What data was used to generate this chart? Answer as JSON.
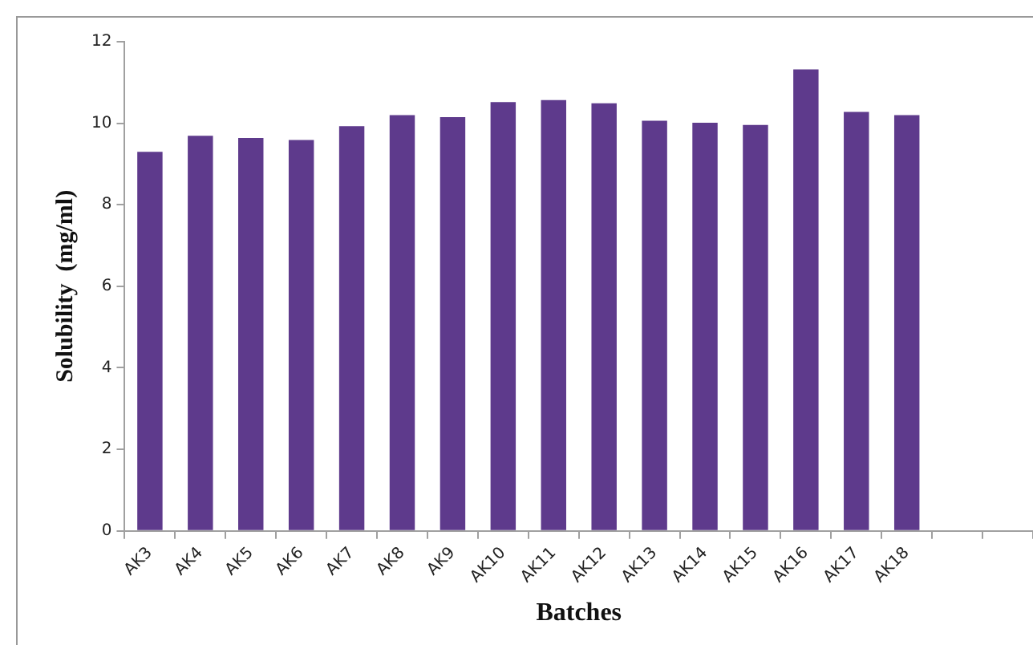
{
  "chart_data": {
    "type": "bar",
    "xlabel": "Batches",
    "ylabel": "Solubility  (mg/ml)",
    "categories": [
      "AK3",
      "AK4",
      "AK5",
      "AK6",
      "AK7",
      "AK8",
      "AK9",
      "AK10",
      "AK11",
      "AK12",
      "AK13",
      "AK14",
      "AK15",
      "AK16",
      "AK17",
      "AK18",
      null,
      null
    ],
    "values": [
      9.3,
      9.69,
      9.64,
      9.59,
      9.93,
      10.2,
      10.15,
      10.52,
      10.57,
      10.49,
      10.06,
      10.01,
      9.96,
      11.32,
      10.28,
      10.2,
      null,
      null
    ],
    "color": "#5e3a8c",
    "ylim": [
      0,
      12
    ],
    "yticks": [
      0,
      2,
      4,
      6,
      8,
      10,
      12
    ],
    "grid": false,
    "legend": false
  }
}
